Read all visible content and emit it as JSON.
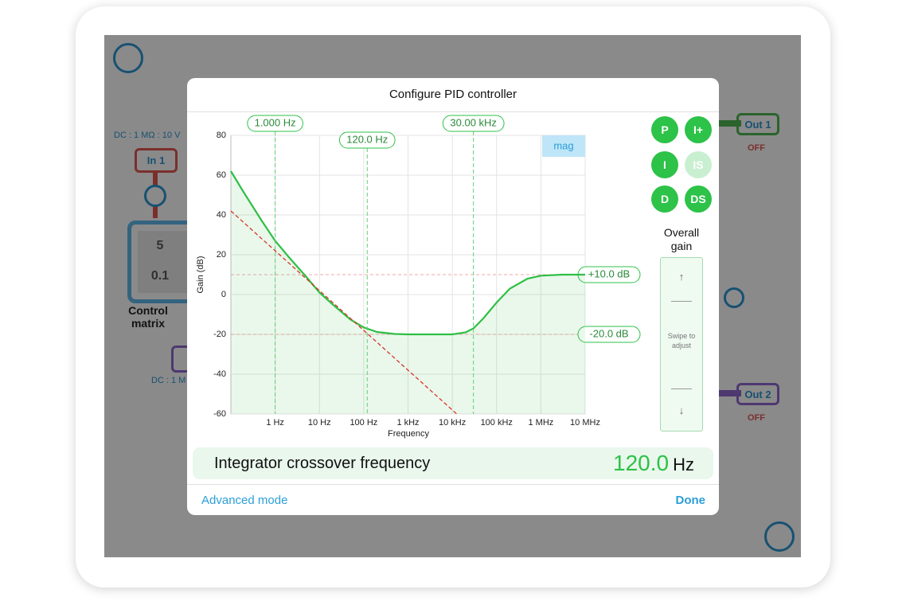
{
  "background": {
    "input1_label": "DC : 1 MΩ : 10 V",
    "in1": "In 1",
    "matrix": [
      "5",
      "0.1"
    ],
    "matrix_label": "Control matrix",
    "input2_label": "DC : 1 M",
    "out1": "Out 1",
    "out1_state": "OFF",
    "out2": "Out 2",
    "out2_state": "OFF"
  },
  "dialog": {
    "title": "Configure PID controller",
    "buttons": [
      "P",
      "I+",
      "I",
      "IS",
      "D",
      "DS"
    ],
    "gain_title": "Overall gain",
    "gain_up": "↑",
    "gain_hint": "Swipe to adjust",
    "gain_down": "↓",
    "readout": {
      "label": "Integrator crossover frequency",
      "value": "120.0",
      "unit": "Hz"
    },
    "footer_left": "Advanced mode",
    "footer_right": "Done"
  },
  "chart_data": {
    "type": "line",
    "x_label": "Frequency",
    "y_label": "Gain (dB)",
    "badge": "mag",
    "xscale": "log",
    "xlim": [
      0.1,
      10000000
    ],
    "xticks": [
      {
        "value": 1,
        "label": "1 Hz"
      },
      {
        "value": 10,
        "label": "10 Hz"
      },
      {
        "value": 100,
        "label": "100 Hz"
      },
      {
        "value": 1000,
        "label": "1 kHz"
      },
      {
        "value": 10000,
        "label": "10 kHz"
      },
      {
        "value": 100000,
        "label": "100 kHz"
      },
      {
        "value": 1000000,
        "label": "1 MHz"
      },
      {
        "value": 10000000,
        "label": "10 MHz"
      }
    ],
    "ylim": [
      -60,
      80
    ],
    "yticks": [
      -60,
      -40,
      -20,
      0,
      20,
      40,
      60,
      80
    ],
    "grid": true,
    "series": [
      {
        "color": "#2fbf45",
        "fill": true,
        "x": [
          0.1,
          0.2,
          0.5,
          1,
          2,
          5,
          10,
          20,
          50,
          100,
          200,
          500,
          1000,
          3000,
          10000,
          20000,
          30000,
          50000,
          100000,
          200000,
          500000,
          1000000,
          3000000,
          10000000
        ],
        "values": [
          62,
          51,
          37,
          27,
          19,
          9,
          1,
          -5,
          -12.5,
          -16.5,
          -18.8,
          -19.8,
          -20,
          -20,
          -20,
          -19,
          -17,
          -12,
          -4,
          3,
          8,
          9.5,
          10,
          10
        ]
      },
      {
        "color": "#d9362b",
        "dashed": true,
        "x": [
          0.1,
          12600
        ],
        "values": [
          42,
          -60
        ]
      }
    ],
    "freq_markers": [
      {
        "value": 1,
        "label": "1.000 Hz"
      },
      {
        "value": 120,
        "label": "120.0 Hz"
      },
      {
        "value": 30000,
        "label": "30.00 kHz"
      }
    ],
    "gain_markers": [
      {
        "value": 10,
        "label": "+10.0 dB"
      },
      {
        "value": -20,
        "label": "-20.0 dB"
      }
    ]
  }
}
